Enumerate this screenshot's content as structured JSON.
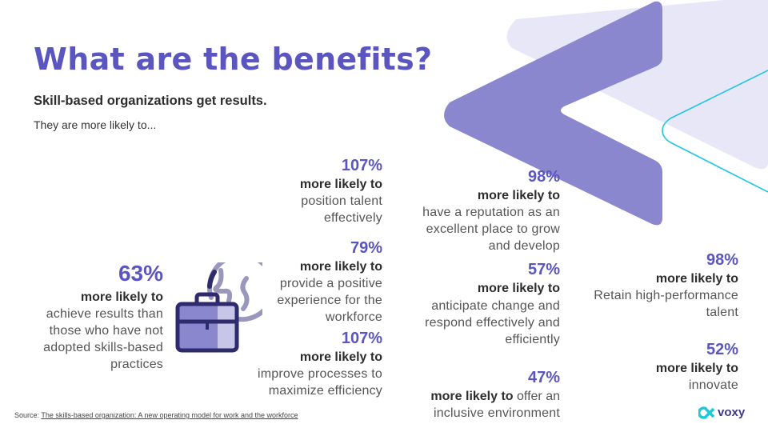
{
  "title": "What are the benefits?",
  "subtitle": "Skill-based organizations get results.",
  "intro": "They are more likely to...",
  "stats": [
    {
      "pct": "63%",
      "more": "more likely to",
      "desc": [
        "achieve results than",
        "those who have not",
        "adopted skills-based",
        "practices"
      ]
    },
    {
      "pct": "107%",
      "more": "more likely to",
      "desc": [
        "position talent",
        "effectively"
      ]
    },
    {
      "pct": "79%",
      "more": "more likely to",
      "desc": [
        "provide a positive",
        "experience for the",
        "workforce"
      ]
    },
    {
      "pct": "107%",
      "more": "more likely to",
      "desc": [
        "improve processes to",
        "maximize efficiency"
      ]
    },
    {
      "pct": "98%",
      "more": "more likely to",
      "desc": [
        "have a reputation as an",
        "excellent place to grow",
        "and develop"
      ]
    },
    {
      "pct": "57%",
      "more": "more likely to",
      "desc": [
        "anticipate change and",
        "respond effectively and",
        "efficiently"
      ]
    },
    {
      "pct": "47%",
      "more": "more likely to",
      "inline": " offer an",
      "desc": [
        "inclusive environment"
      ]
    },
    {
      "pct": "98%",
      "more": "more likely to",
      "desc": [
        "Retain high-performance",
        "talent"
      ]
    },
    {
      "pct": "52%",
      "more": "more likely to",
      "desc": [
        "innovate"
      ]
    }
  ],
  "source": {
    "label": "Source: ",
    "link": "The skills-based organization: A new operating model for work and the workforce"
  },
  "logo": {
    "word": "voxy",
    "icon": "voxy-logo-icon"
  },
  "colors": {
    "accent": "#5b56bf",
    "chevron": "#8a87cf",
    "chevron_light": "#e8e7f7",
    "line": "#1ec8dc",
    "icon_dark": "#2e2a6b"
  }
}
